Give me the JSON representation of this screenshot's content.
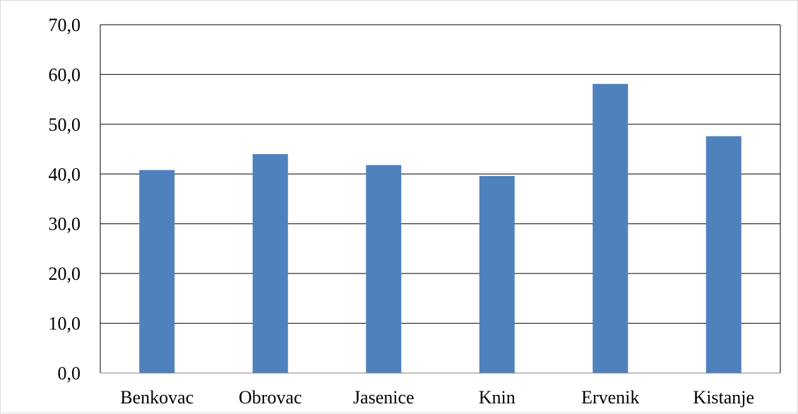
{
  "chart_data": {
    "type": "bar",
    "title": "",
    "xlabel": "",
    "ylabel": "",
    "categories": [
      "Benkovac",
      "Obrovac",
      "Jasenice",
      "Knin",
      "Ervenik",
      "Kistanje"
    ],
    "values": [
      40.8,
      44.0,
      41.8,
      39.6,
      58.1,
      47.6
    ],
    "ylim": [
      0,
      70
    ],
    "yticks": [
      "0,0",
      "10,0",
      "20,0",
      "30,0",
      "40,0",
      "50,0",
      "60,0",
      "70,0"
    ],
    "grid": true,
    "legend": "none",
    "colors": {
      "bar": "#4f81bd",
      "grid": "#000000",
      "axis": "#7f7f7f"
    }
  }
}
